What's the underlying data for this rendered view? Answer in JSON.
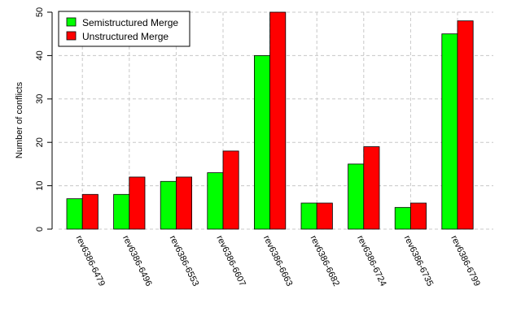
{
  "chart_data": {
    "type": "bar",
    "categories": [
      "rev6386-6479",
      "rev6386-6496",
      "rev6386-6553",
      "rev6386-6607",
      "rev6386-6663",
      "rev6386-6682",
      "rev6386-6724",
      "rev6386-6735",
      "rev6386-6799"
    ],
    "series": [
      {
        "name": "Semistructured Merge",
        "values": [
          7,
          8,
          11,
          13,
          40,
          6,
          15,
          5,
          45
        ],
        "color": "#00ff00"
      },
      {
        "name": "Unstructured Merge",
        "values": [
          8,
          12,
          12,
          18,
          50,
          6,
          19,
          6,
          48
        ],
        "color": "#ff0000"
      }
    ],
    "title": "",
    "xlabel": "",
    "ylabel": "Number of conflicts",
    "ylim": [
      0,
      50
    ],
    "yticks": [
      0,
      10,
      20,
      30,
      40,
      50
    ],
    "grid": true,
    "legend_position": "top-left"
  }
}
